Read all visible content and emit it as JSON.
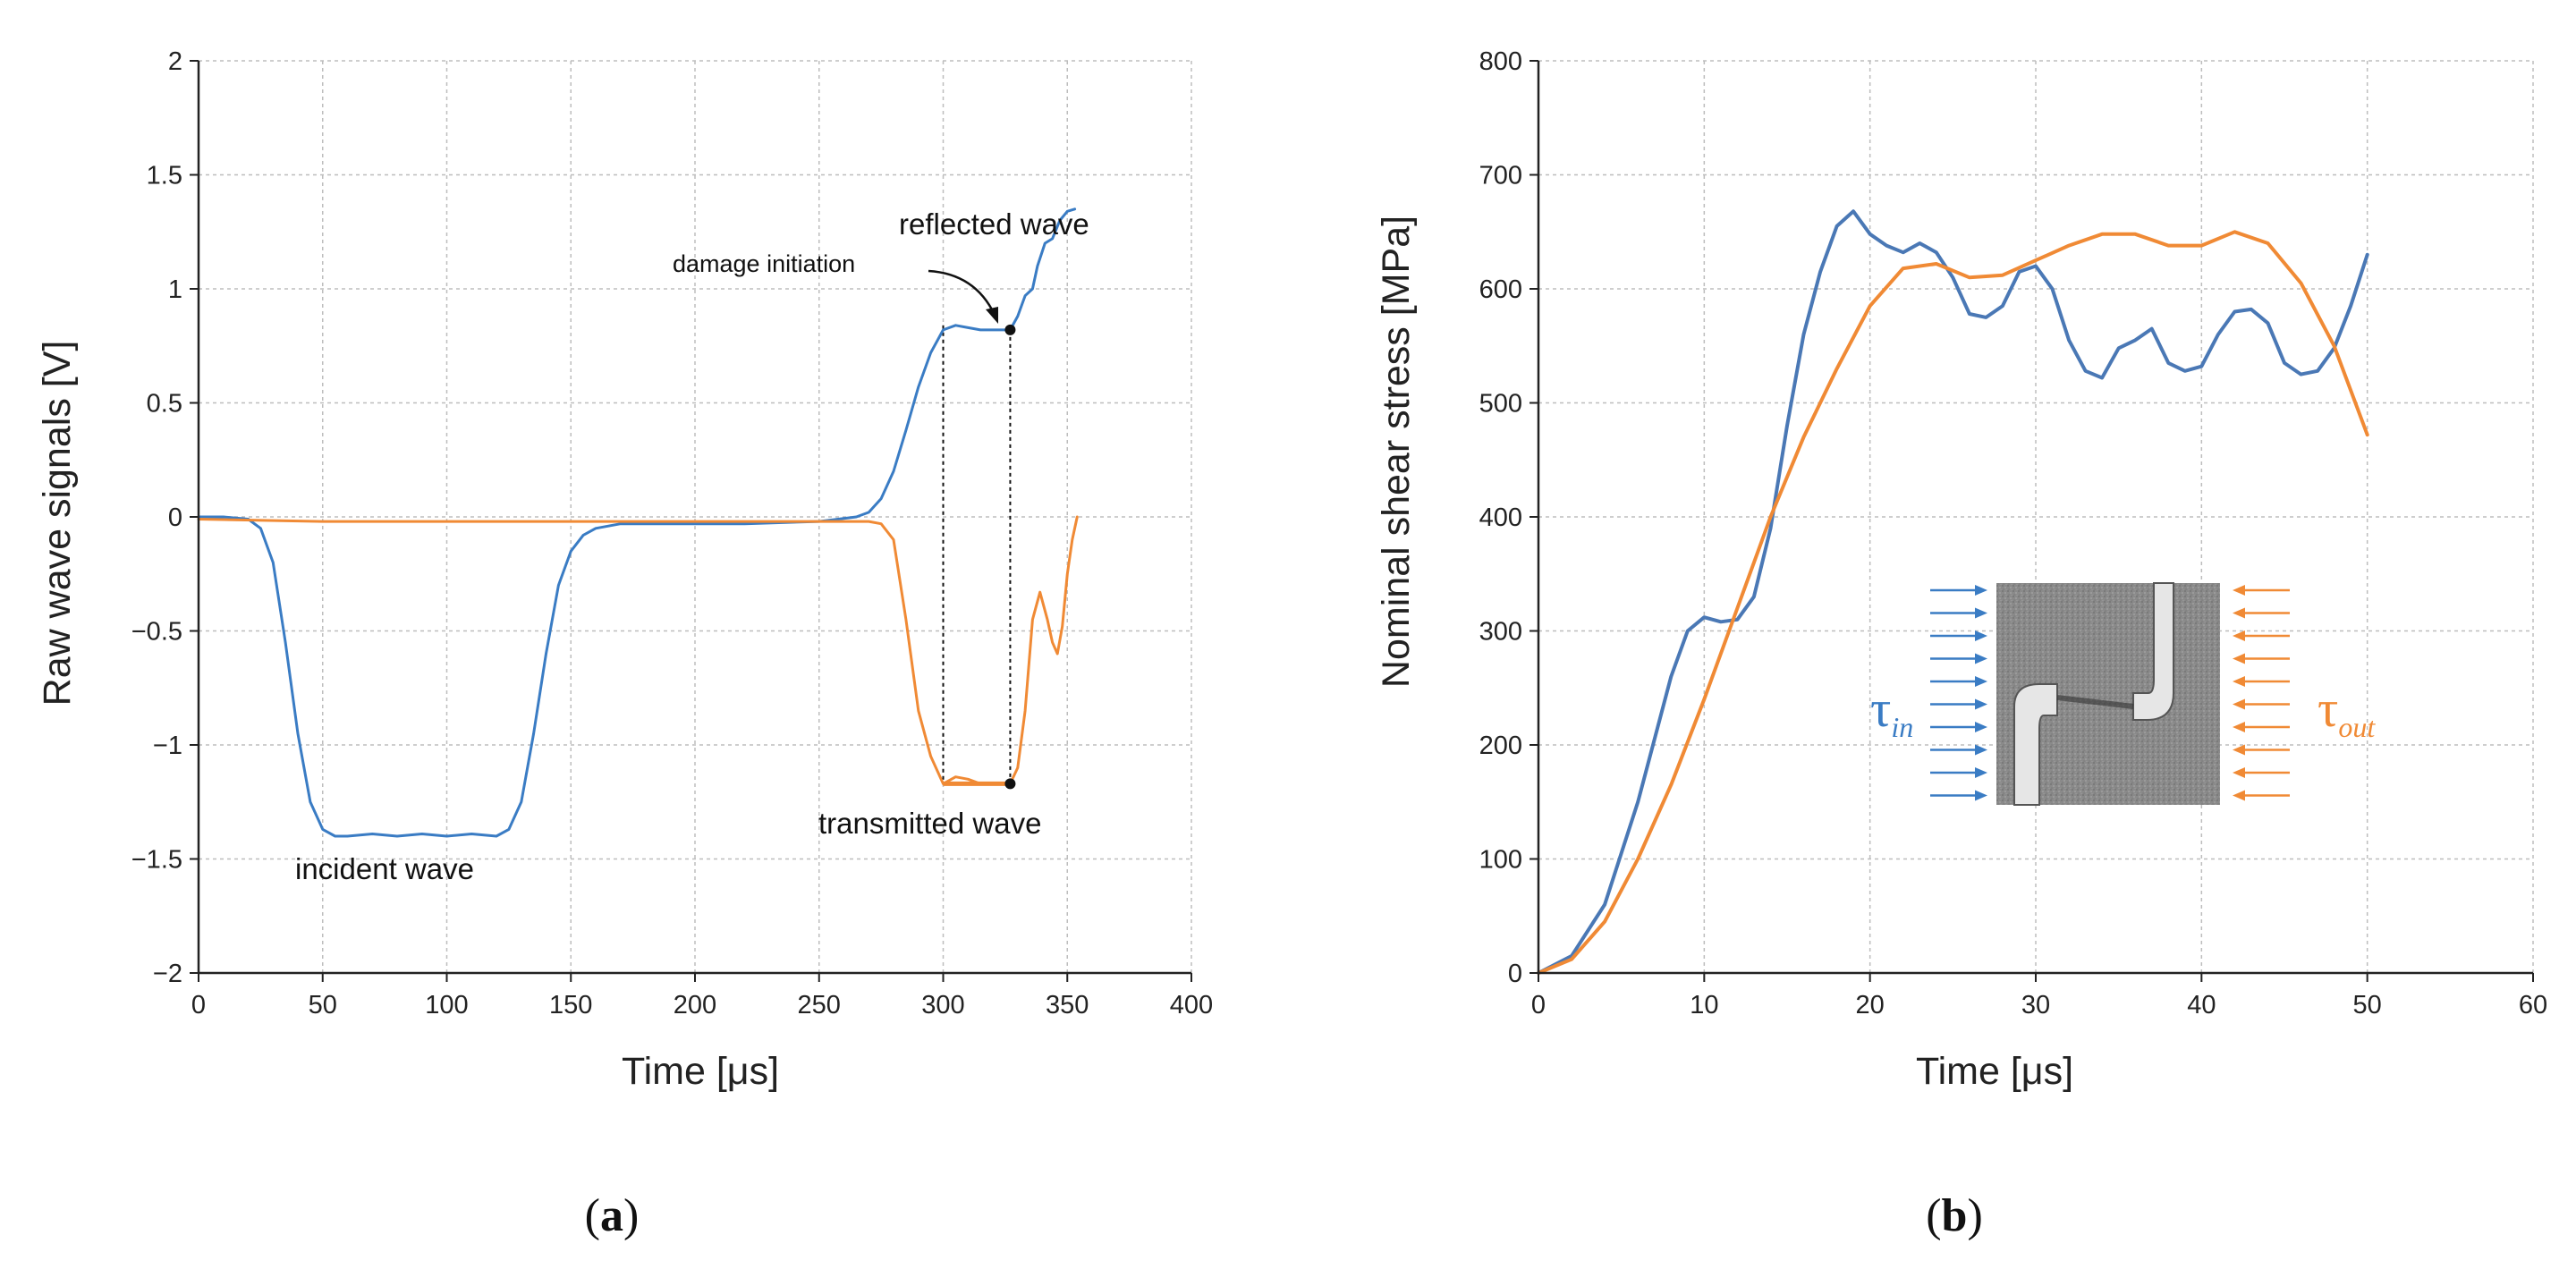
{
  "figure": {
    "panel_a_label": "a",
    "panel_b_label": "b"
  },
  "chart_data": [
    {
      "type": "line",
      "panel": "a",
      "title": "",
      "xlabel": "Time [μs]",
      "ylabel": "Raw wave signals [V]",
      "xlim": [
        0,
        400
      ],
      "ylim": [
        -2,
        2
      ],
      "xticks": [
        0,
        50,
        100,
        150,
        200,
        250,
        300,
        350,
        400
      ],
      "yticks": [
        -2,
        -1.5,
        -1,
        -0.5,
        0,
        0.5,
        1,
        1.5,
        2
      ],
      "xtick_labels": [
        "0",
        "50",
        "100",
        "150",
        "200",
        "250",
        "300",
        "350",
        "400"
      ],
      "ytick_labels": [
        "−2",
        "−1.5",
        "−1",
        "−0.5",
        "0",
        "0.5",
        "1",
        "1.5",
        "2"
      ],
      "grid": true,
      "series": [
        {
          "color": "#3a7cc4",
          "x": [
            0,
            10,
            20,
            25,
            30,
            35,
            40,
            45,
            50,
            55,
            60,
            70,
            80,
            90,
            100,
            110,
            120,
            125,
            130,
            135,
            140,
            145,
            150,
            155,
            160,
            170,
            180,
            200,
            220,
            250,
            265,
            270,
            275,
            280,
            285,
            290,
            295,
            300,
            305,
            310,
            315,
            320,
            325,
            327,
            330,
            333,
            336,
            338,
            341,
            344,
            347,
            350,
            353
          ],
          "y": [
            0,
            0,
            -0.01,
            -0.05,
            -0.2,
            -0.55,
            -0.95,
            -1.25,
            -1.37,
            -1.4,
            -1.4,
            -1.39,
            -1.4,
            -1.39,
            -1.4,
            -1.39,
            -1.4,
            -1.37,
            -1.25,
            -0.95,
            -0.6,
            -0.3,
            -0.15,
            -0.08,
            -0.05,
            -0.03,
            -0.03,
            -0.03,
            -0.03,
            -0.02,
            0,
            0.02,
            0.08,
            0.2,
            0.38,
            0.57,
            0.72,
            0.82,
            0.84,
            0.83,
            0.82,
            0.82,
            0.82,
            0.82,
            0.88,
            0.97,
            1.0,
            1.1,
            1.2,
            1.22,
            1.3,
            1.34,
            1.35
          ]
        },
        {
          "color": "#f08a35",
          "x": [
            0,
            50,
            100,
            150,
            200,
            250,
            270,
            275,
            280,
            285,
            290,
            295,
            300,
            305,
            310,
            315,
            320,
            325,
            327,
            330,
            333,
            336,
            339,
            342,
            344,
            346,
            348,
            350,
            352,
            354
          ],
          "y": [
            -0.01,
            -0.02,
            -0.02,
            -0.02,
            -0.02,
            -0.02,
            -0.02,
            -0.03,
            -0.1,
            -0.45,
            -0.85,
            -1.05,
            -1.17,
            -1.14,
            -1.15,
            -1.17,
            -1.17,
            -1.17,
            -1.17,
            -1.1,
            -0.85,
            -0.45,
            -0.33,
            -0.45,
            -0.55,
            -0.6,
            -0.48,
            -0.25,
            -0.1,
            0
          ]
        }
      ],
      "vlines": [
        {
          "x": 300,
          "y_from": -1.17,
          "y_to": 0.84
        },
        {
          "x": 327,
          "y_from": -1.17,
          "y_to": 0.82
        }
      ],
      "markers": [
        {
          "x": 327,
          "y": 0.82
        },
        {
          "x": 327,
          "y": -1.17
        }
      ],
      "annotations": {
        "reflected": "reflected wave",
        "damage": "damage initiation",
        "transmitted": "transmitted wave",
        "incident": "incident wave"
      }
    },
    {
      "type": "line",
      "panel": "b",
      "title": "",
      "xlabel": "Time [μs]",
      "ylabel": "Nominal shear stress [MPa]",
      "xlim": [
        0,
        60
      ],
      "ylim": [
        0,
        800
      ],
      "xticks": [
        0,
        10,
        20,
        30,
        40,
        50,
        60
      ],
      "yticks": [
        0,
        100,
        200,
        300,
        400,
        500,
        600,
        700,
        800
      ],
      "xtick_labels": [
        "0",
        "10",
        "20",
        "30",
        "40",
        "50",
        "60"
      ],
      "ytick_labels": [
        "0",
        "100",
        "200",
        "300",
        "400",
        "500",
        "600",
        "700",
        "800"
      ],
      "grid": true,
      "series": [
        {
          "color": "#4a78b5",
          "x": [
            0,
            2,
            4,
            6,
            8,
            9,
            10,
            11,
            12,
            13,
            14,
            15,
            16,
            17,
            18,
            19,
            20,
            21,
            22,
            23,
            24,
            25,
            26,
            27,
            28,
            29,
            30,
            31,
            32,
            33,
            34,
            35,
            36,
            37,
            38,
            39,
            40,
            41,
            42,
            43,
            44,
            45,
            46,
            47,
            48,
            49,
            50
          ],
          "y": [
            0,
            15,
            60,
            150,
            260,
            300,
            312,
            308,
            310,
            330,
            390,
            480,
            560,
            615,
            655,
            668,
            648,
            638,
            632,
            640,
            632,
            610,
            578,
            575,
            585,
            615,
            620,
            600,
            555,
            528,
            522,
            548,
            555,
            565,
            535,
            528,
            532,
            560,
            580,
            582,
            570,
            535,
            525,
            528,
            548,
            585,
            630
          ]
        },
        {
          "color": "#f08a35",
          "x": [
            0,
            2,
            4,
            6,
            8,
            10,
            12,
            14,
            16,
            18,
            20,
            22,
            24,
            26,
            28,
            30,
            32,
            34,
            36,
            38,
            40,
            42,
            44,
            46,
            48,
            50
          ],
          "y": [
            0,
            12,
            45,
            100,
            165,
            240,
            320,
            400,
            470,
            530,
            585,
            618,
            622,
            610,
            612,
            625,
            638,
            648,
            648,
            638,
            638,
            650,
            640,
            605,
            550,
            472
          ]
        }
      ],
      "inset": {
        "tau_in_symbol": "τ",
        "tau_in_subscript": "in",
        "tau_out_symbol": "τ",
        "tau_out_subscript": "out",
        "arrow_count": 10
      }
    }
  ]
}
